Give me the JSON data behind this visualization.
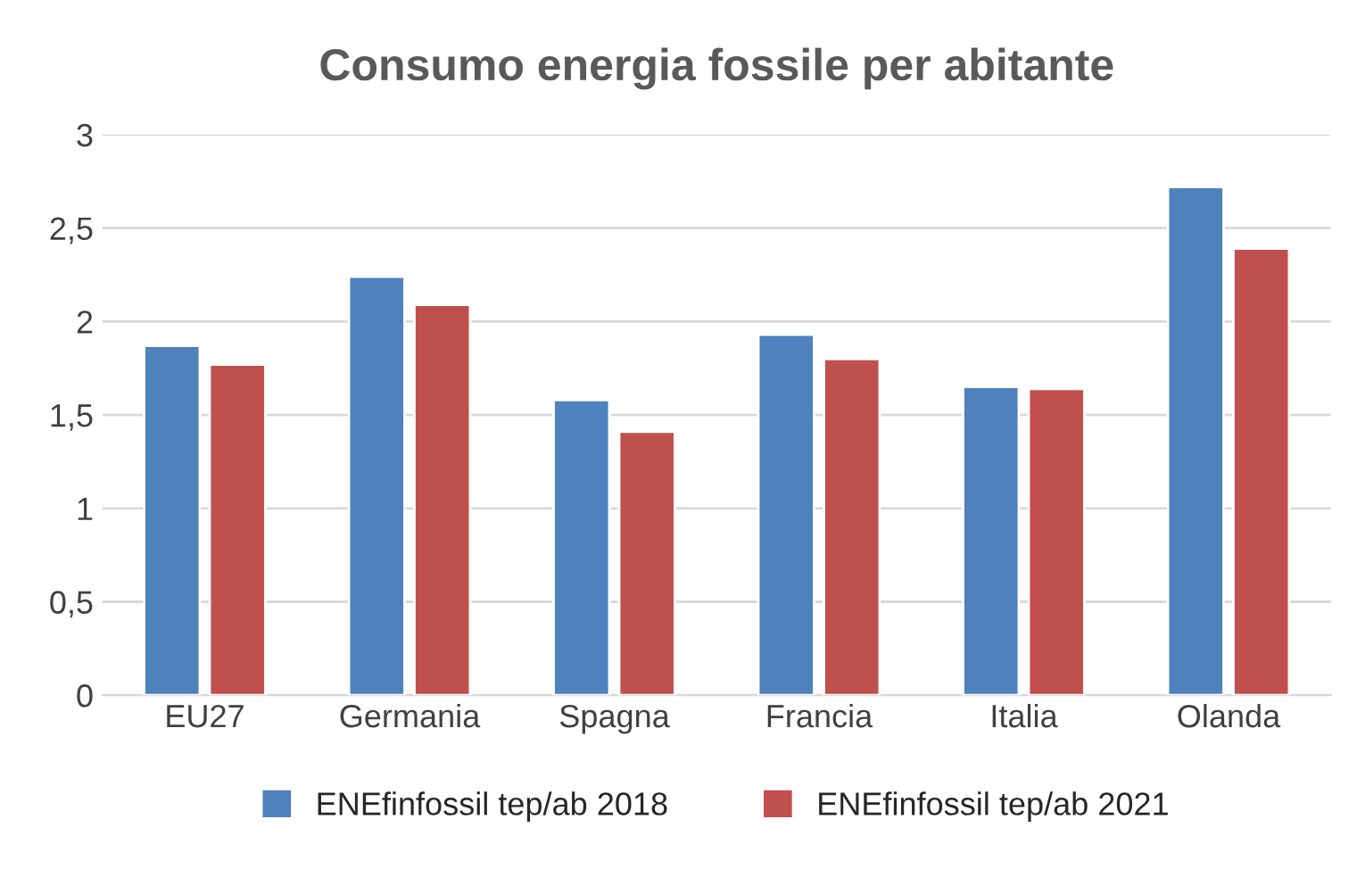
{
  "chart_data": {
    "type": "bar",
    "title": "Consumo energia fossile per abitante",
    "categories": [
      "EU27",
      "Germania",
      "Spagna",
      "Francia",
      "Italia",
      "Olanda"
    ],
    "series": [
      {
        "name": "ENEfinfossil tep/ab 2018",
        "color": "#4f81bd",
        "values": [
          1.87,
          2.24,
          1.58,
          1.93,
          1.65,
          2.72
        ]
      },
      {
        "name": "ENEfinfossil tep/ab 2021",
        "color": "#c0504d",
        "values": [
          1.77,
          2.09,
          1.41,
          1.8,
          1.64,
          2.39
        ]
      }
    ],
    "ylim": [
      0,
      3
    ],
    "yticks": [
      0,
      {
        "value": 0.5,
        "label": "0,5"
      },
      1,
      {
        "value": 1.5,
        "label": "1,5"
      },
      2,
      {
        "value": 2.5,
        "label": "2,5"
      },
      3
    ],
    "grid": "y",
    "legend": "bottom"
  }
}
